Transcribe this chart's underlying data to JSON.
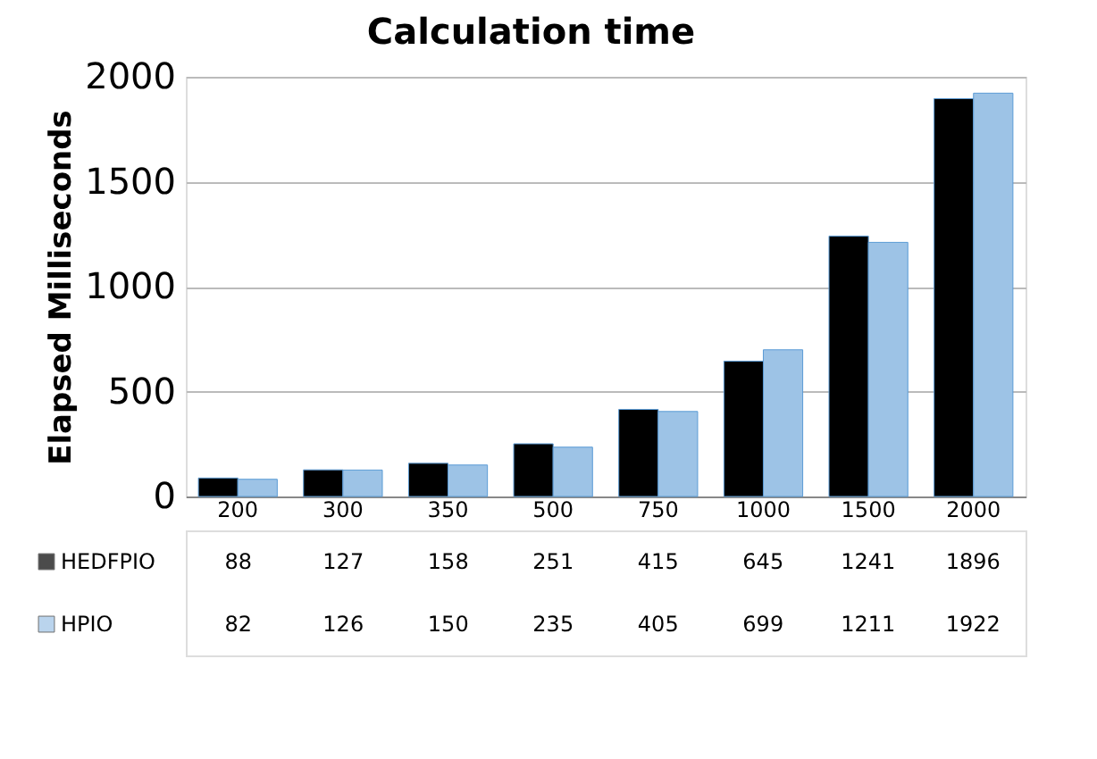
{
  "chart_data": {
    "type": "bar",
    "title": "Calculation time",
    "ylabel": "Elapsed Milliseconds",
    "categories": [
      "200",
      "300",
      "350",
      "500",
      "750",
      "1000",
      "1500",
      "2000"
    ],
    "series": [
      {
        "name": "HEDFPIO",
        "color": "#000000",
        "values": [
          88,
          127,
          158,
          251,
          415,
          645,
          1241,
          1896
        ]
      },
      {
        "name": "HPIO",
        "color": "#9dc3e6",
        "values": [
          82,
          126,
          150,
          235,
          405,
          699,
          1211,
          1922
        ]
      }
    ],
    "ylim": [
      0,
      2000
    ],
    "yticks": [
      0,
      500,
      1000,
      1500,
      2000
    ],
    "grid": "y",
    "legend": "bottom",
    "data_labels": true
  }
}
